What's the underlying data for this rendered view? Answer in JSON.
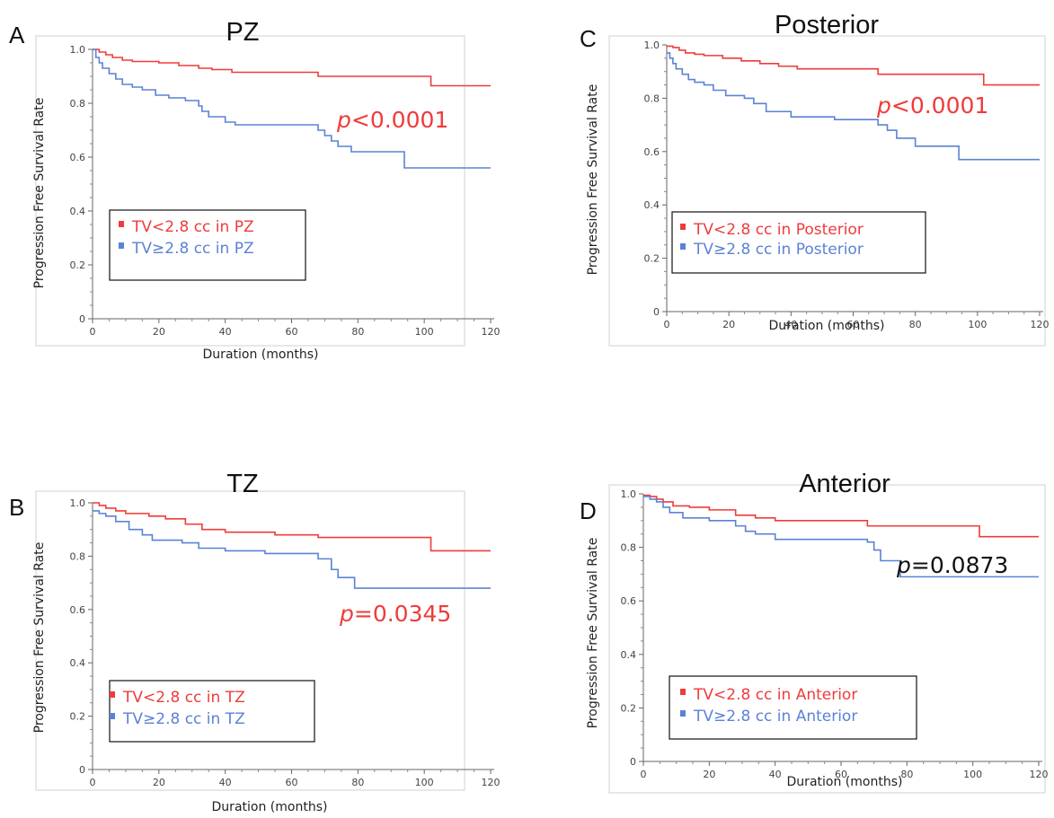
{
  "colors": {
    "low": "#ef3b3b",
    "high": "#5b82d6",
    "neutral": "#111111"
  },
  "chart_data": [
    {
      "type": "line",
      "panel": "A",
      "title": "PZ",
      "xlabel": "Duration (months)",
      "ylabel": "Progression Free Survival Rate",
      "xlim": [
        0,
        120
      ],
      "ylim": [
        0,
        1.0
      ],
      "xticks": [
        "0",
        "20",
        "40",
        "60",
        "80",
        "100",
        "120"
      ],
      "yticks": [
        "0",
        "0.2",
        "0.4",
        "0.6",
        "0.8",
        "1.0"
      ],
      "legend": "inside",
      "pvalue": {
        "prefix": "p",
        "text": "<0.0001",
        "color": "#ef3b3b"
      },
      "series": [
        {
          "name": "TV<2.8 cc in PZ",
          "color": "#ef3b3b",
          "x": [
            0,
            2,
            4,
            6,
            9,
            12,
            20,
            26,
            32,
            36,
            42,
            68,
            102,
            120
          ],
          "y": [
            1.0,
            0.99,
            0.98,
            0.97,
            0.96,
            0.955,
            0.95,
            0.94,
            0.93,
            0.925,
            0.915,
            0.9,
            0.865,
            0.865
          ]
        },
        {
          "name": "TV≥2.8 cc in PZ",
          "color": "#5b82d6",
          "x": [
            0,
            1,
            2,
            3,
            5,
            7,
            9,
            12,
            15,
            19,
            23,
            28,
            32,
            33,
            35,
            40,
            43,
            68,
            70,
            72,
            74,
            78,
            94,
            120
          ],
          "y": [
            1.0,
            0.97,
            0.95,
            0.93,
            0.91,
            0.89,
            0.87,
            0.86,
            0.85,
            0.83,
            0.82,
            0.81,
            0.79,
            0.77,
            0.75,
            0.73,
            0.72,
            0.7,
            0.68,
            0.66,
            0.64,
            0.62,
            0.56,
            0.56
          ]
        }
      ]
    },
    {
      "type": "line",
      "panel": "B",
      "title": "TZ",
      "xlabel": "Duration (months)",
      "ylabel": "Progression Free Survival Rate",
      "xlim": [
        0,
        120
      ],
      "ylim": [
        0,
        1.0
      ],
      "xticks": [
        "0",
        "20",
        "40",
        "60",
        "80",
        "100",
        "120"
      ],
      "yticks": [
        "0",
        "0.2",
        "0.4",
        "0.6",
        "0.8",
        "1.0"
      ],
      "legend": "inside",
      "pvalue": {
        "prefix": "p",
        "text": "=0.0345",
        "color": "#ef3b3b"
      },
      "series": [
        {
          "name": "TV<2.8 cc in TZ",
          "color": "#ef3b3b",
          "x": [
            0,
            2,
            4,
            7,
            10,
            17,
            22,
            28,
            33,
            40,
            55,
            68,
            102,
            120
          ],
          "y": [
            1.0,
            0.99,
            0.98,
            0.97,
            0.96,
            0.95,
            0.94,
            0.92,
            0.9,
            0.89,
            0.88,
            0.87,
            0.82,
            0.82
          ]
        },
        {
          "name": "TV≥2.8 cc in TZ",
          "color": "#5b82d6",
          "x": [
            0,
            2,
            4,
            7,
            11,
            15,
            18,
            27,
            32,
            40,
            52,
            68,
            72,
            74,
            79,
            120
          ],
          "y": [
            0.97,
            0.96,
            0.95,
            0.93,
            0.9,
            0.88,
            0.86,
            0.85,
            0.83,
            0.82,
            0.81,
            0.79,
            0.75,
            0.72,
            0.68,
            0.68
          ]
        }
      ]
    },
    {
      "type": "line",
      "panel": "C",
      "title": "Posterior",
      "xlabel": "Duration (months)",
      "ylabel": "Progression Free Survival Rate",
      "xlim": [
        0,
        120
      ],
      "ylim": [
        0,
        1.0
      ],
      "xticks": [
        "0",
        "20",
        "40",
        "60",
        "80",
        "100",
        "120"
      ],
      "yticks": [
        "0",
        "0.2",
        "0.4",
        "0.6",
        "0.8",
        "1.0"
      ],
      "legend": "inside",
      "pvalue": {
        "prefix": "p",
        "text": "<0.0001",
        "color": "#ef3b3b"
      },
      "series": [
        {
          "name": "TV<2.8 cc in Posterior",
          "color": "#ef3b3b",
          "x": [
            0,
            2,
            4,
            6,
            9,
            12,
            18,
            24,
            30,
            36,
            42,
            68,
            102,
            120
          ],
          "y": [
            0.995,
            0.99,
            0.98,
            0.97,
            0.965,
            0.96,
            0.95,
            0.94,
            0.93,
            0.92,
            0.91,
            0.89,
            0.85,
            0.85
          ]
        },
        {
          "name": "TV≥2.8 cc in Posterior",
          "color": "#5b82d6",
          "x": [
            0,
            1,
            2,
            3,
            5,
            7,
            9,
            12,
            15,
            19,
            25,
            28,
            32,
            40,
            54,
            68,
            71,
            74,
            80,
            94,
            120
          ],
          "y": [
            0.97,
            0.95,
            0.93,
            0.91,
            0.89,
            0.87,
            0.86,
            0.85,
            0.83,
            0.81,
            0.8,
            0.78,
            0.75,
            0.73,
            0.72,
            0.7,
            0.68,
            0.65,
            0.62,
            0.57,
            0.57
          ]
        }
      ]
    },
    {
      "type": "line",
      "panel": "D",
      "title": "Anterior",
      "xlabel": "Duration (months)",
      "ylabel": "Progression Free Survival Rate",
      "xlim": [
        0,
        120
      ],
      "ylim": [
        0,
        1.0
      ],
      "xticks": [
        "0",
        "20",
        "40",
        "60",
        "80",
        "100",
        "120"
      ],
      "yticks": [
        "0",
        "0.2",
        "0.4",
        "0.6",
        "0.8",
        "1.0"
      ],
      "legend": "inside",
      "pvalue": {
        "prefix": "p",
        "text": "=0.0873",
        "color": "#111111"
      },
      "series": [
        {
          "name": "TV<2.8 cc in Anterior",
          "color": "#ef3b3b",
          "x": [
            0,
            2,
            4,
            6,
            9,
            14,
            20,
            28,
            34,
            40,
            68,
            102,
            120
          ],
          "y": [
            0.995,
            0.99,
            0.98,
            0.97,
            0.955,
            0.95,
            0.94,
            0.92,
            0.91,
            0.9,
            0.88,
            0.84,
            0.84
          ]
        },
        {
          "name": "TV≥2.8 cc in Anterior",
          "color": "#5b82d6",
          "x": [
            0,
            2,
            4,
            6,
            8,
            12,
            20,
            28,
            31,
            34,
            40,
            68,
            70,
            72,
            78,
            120
          ],
          "y": [
            0.99,
            0.98,
            0.97,
            0.95,
            0.93,
            0.91,
            0.9,
            0.88,
            0.86,
            0.85,
            0.83,
            0.82,
            0.79,
            0.75,
            0.69,
            0.69
          ]
        }
      ]
    }
  ]
}
